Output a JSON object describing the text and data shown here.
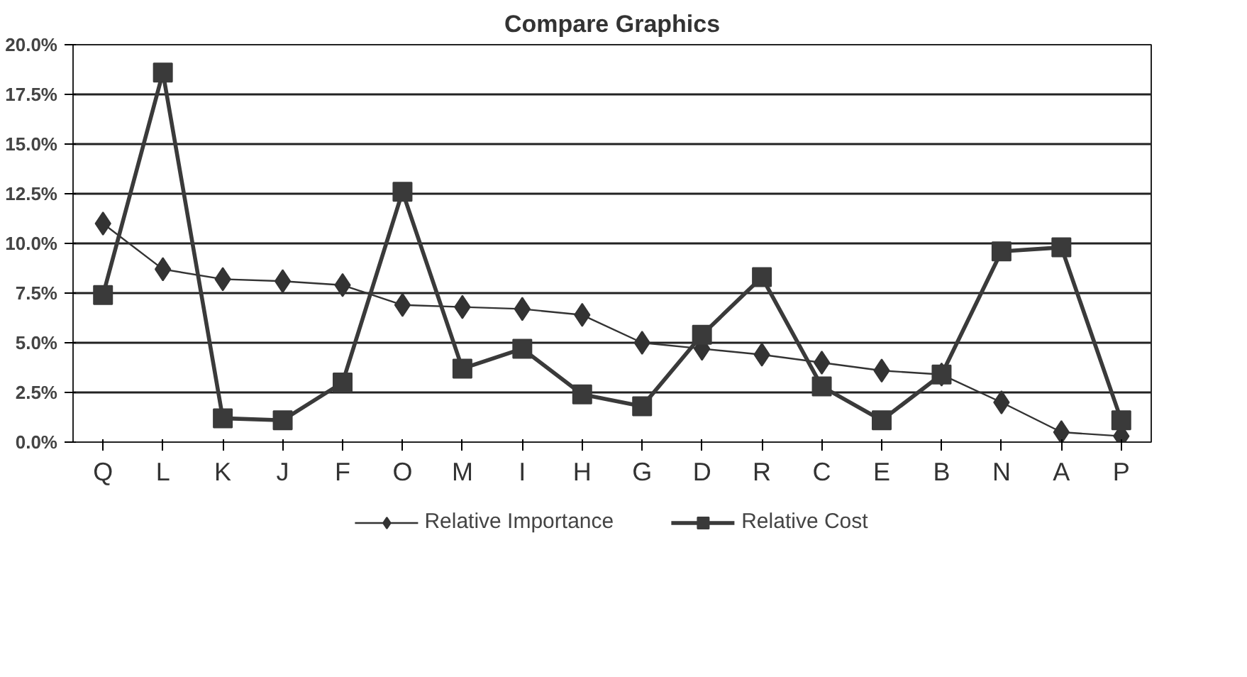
{
  "chart_data": {
    "type": "line",
    "title": "Compare Graphics",
    "categories": [
      "Q",
      "L",
      "K",
      "J",
      "F",
      "O",
      "M",
      "I",
      "H",
      "G",
      "D",
      "R",
      "C",
      "E",
      "B",
      "N",
      "A",
      "P"
    ],
    "series": [
      {
        "name": "Relative Importance",
        "color": "#333333",
        "marker": "diamond",
        "values": [
          11.0,
          8.7,
          8.2,
          8.1,
          7.9,
          6.9,
          6.8,
          6.7,
          6.4,
          5.0,
          4.7,
          4.4,
          4.0,
          3.6,
          3.4,
          2.0,
          0.5,
          0.3
        ]
      },
      {
        "name": "Relative Cost",
        "color": "#3a3a3a",
        "marker": "square",
        "values": [
          7.4,
          18.6,
          1.2,
          1.1,
          3.0,
          12.6,
          3.7,
          4.7,
          2.4,
          1.8,
          5.4,
          8.3,
          2.8,
          1.1,
          3.4,
          9.6,
          9.8,
          1.1
        ]
      }
    ],
    "ylim": [
      0,
      20
    ],
    "yticks": [
      {
        "value": 0,
        "label": "0.0%"
      },
      {
        "value": 2.5,
        "label": "2.5%"
      },
      {
        "value": 5,
        "label": "5.0%"
      },
      {
        "value": 7.5,
        "label": "7.5%"
      },
      {
        "value": 10,
        "label": "10.0%"
      },
      {
        "value": 12.5,
        "label": "12.5%"
      },
      {
        "value": 15,
        "label": "15.0%"
      },
      {
        "value": 17.5,
        "label": "17.5%"
      },
      {
        "value": 20,
        "label": "20.0%"
      }
    ],
    "grid": "y",
    "legend": "bottom",
    "line_style": "solid"
  }
}
